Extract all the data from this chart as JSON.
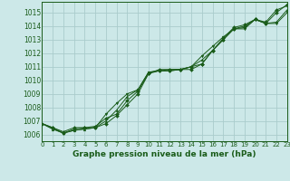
{
  "title": "Graphe pression niveau de la mer (hPa)",
  "background_color": "#cce8e8",
  "grid_color": "#aacccc",
  "line_color": "#1a5c1a",
  "xlim": [
    0,
    23
  ],
  "ylim": [
    1005.5,
    1015.8
  ],
  "yticks": [
    1006,
    1007,
    1008,
    1009,
    1010,
    1011,
    1012,
    1013,
    1014,
    1015
  ],
  "xticks": [
    0,
    1,
    2,
    3,
    4,
    5,
    6,
    7,
    8,
    9,
    10,
    11,
    12,
    13,
    14,
    15,
    16,
    17,
    18,
    19,
    20,
    21,
    22,
    23
  ],
  "series": [
    [
      1006.8,
      1006.5,
      1006.2,
      1006.5,
      1006.5,
      1006.6,
      1007.2,
      1007.5,
      1008.5,
      1009.2,
      1010.5,
      1010.7,
      1010.7,
      1010.8,
      1011.0,
      1011.2,
      1012.2,
      1013.0,
      1013.8,
      1014.0,
      1014.5,
      1014.3,
      1015.2,
      1015.5
    ],
    [
      1006.8,
      1006.5,
      1006.1,
      1006.4,
      1006.5,
      1006.5,
      1006.8,
      1007.4,
      1008.2,
      1009.0,
      1010.5,
      1010.8,
      1010.8,
      1010.8,
      1010.8,
      1011.2,
      1012.2,
      1013.1,
      1013.9,
      1014.1,
      1014.5,
      1014.2,
      1015.0,
      1015.6
    ],
    [
      1006.8,
      1006.4,
      1006.1,
      1006.3,
      1006.4,
      1006.5,
      1007.5,
      1008.3,
      1009.0,
      1009.3,
      1010.6,
      1010.7,
      1010.8,
      1010.8,
      1011.0,
      1011.8,
      1012.5,
      1013.2,
      1013.8,
      1013.8,
      1014.5,
      1014.2,
      1014.2,
      1015.0
    ],
    [
      1006.8,
      1006.4,
      1006.1,
      1006.3,
      1006.4,
      1006.5,
      1007.0,
      1007.8,
      1008.8,
      1009.3,
      1010.6,
      1010.7,
      1010.7,
      1010.8,
      1011.0,
      1011.5,
      1012.2,
      1013.0,
      1013.8,
      1013.9,
      1014.5,
      1014.2,
      1014.3,
      1015.2
    ]
  ],
  "ylabel_fontsize": 5.5,
  "xlabel_fontsize": 6.5,
  "tick_fontsize": 5.0,
  "linewidth": 0.7,
  "markersize": 2.0
}
